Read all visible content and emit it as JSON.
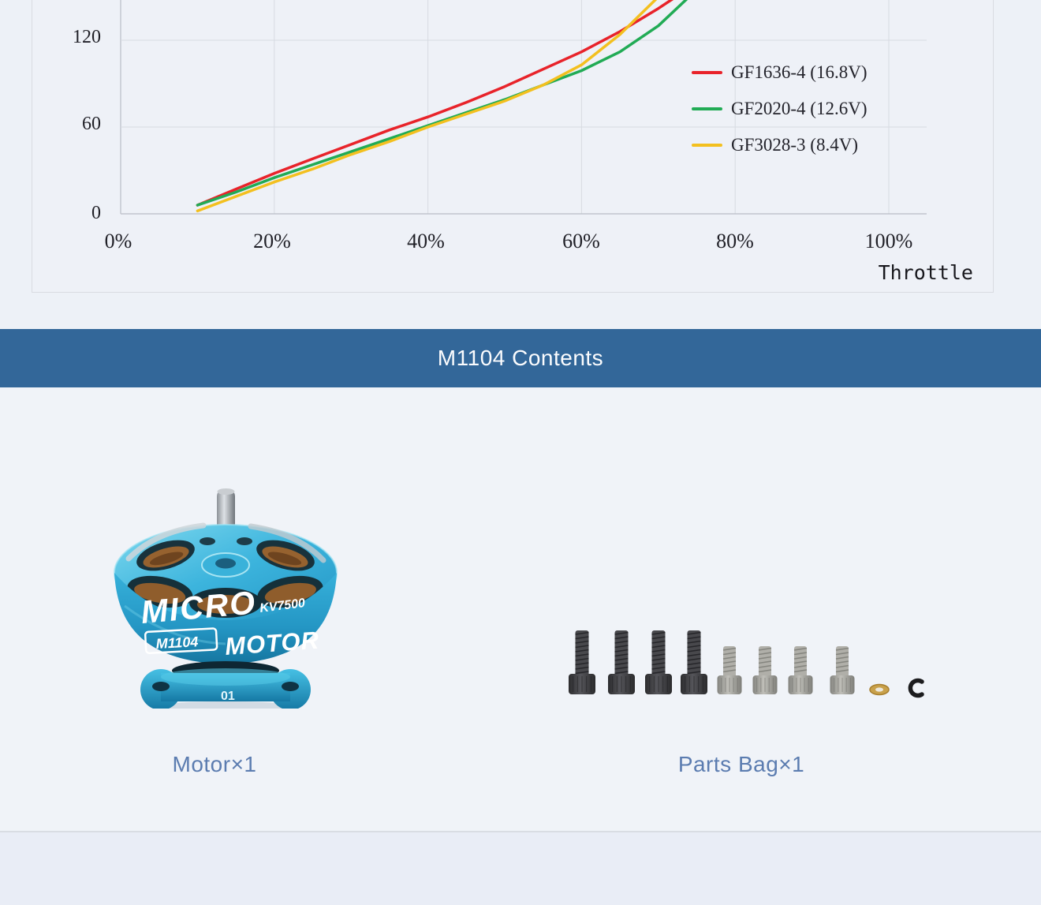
{
  "page": {
    "section_title": "M1104 Contents",
    "captions": {
      "motor": "Motor×1",
      "parts_bag": "Parts Bag×1"
    },
    "colors": {
      "banner_blue": "#336799",
      "caption_text": "#5b7cb0",
      "page_background": "#edf1f7",
      "series_red": "#e8232a",
      "series_green": "#21ab55",
      "series_yellow": "#f3c01f"
    }
  },
  "motor_graphic": {
    "brand_line1": "MICRO",
    "brand_line2": "MOTOR",
    "kv_text": "KV7500",
    "model_text": "M1104",
    "base_text": "01"
  },
  "chart_data": {
    "type": "line",
    "title": "",
    "xlabel": "Throttle",
    "ylabel": "",
    "grid": true,
    "legend_position": "right-middle",
    "x_tick_labels": [
      "0%",
      "20%",
      "40%",
      "60%",
      "80%",
      "100%"
    ],
    "x_tick_values": [
      0,
      20,
      40,
      60,
      80,
      100
    ],
    "y_tick_labels_top_to_bottom": [
      "120",
      "60",
      "0"
    ],
    "y_tick_values": [
      0,
      60,
      120
    ],
    "visible_y_range": [
      0,
      148
    ],
    "series": [
      {
        "name": "GF1636-4 (16.8V)",
        "color": "#e8232a",
        "x": [
          10,
          15,
          20,
          25,
          30,
          35,
          40,
          45,
          50,
          55,
          60,
          65,
          70,
          72
        ],
        "y": [
          6,
          17,
          28,
          38,
          48,
          58,
          67,
          77,
          88,
          100,
          112,
          126,
          142,
          149
        ]
      },
      {
        "name": "GF2020-4 (12.6V)",
        "color": "#21ab55",
        "x": [
          10,
          15,
          20,
          25,
          30,
          35,
          40,
          45,
          50,
          55,
          60,
          65,
          70,
          74
        ],
        "y": [
          6,
          15,
          25,
          34,
          43,
          52,
          61,
          70,
          79,
          89,
          99,
          112,
          130,
          150
        ]
      },
      {
        "name": "GF3028-3 (8.4V)",
        "color": "#f3c01f",
        "x": [
          10,
          15,
          20,
          25,
          30,
          35,
          40,
          45,
          50,
          55,
          60,
          65,
          70
        ],
        "y": [
          2,
          12,
          22,
          31,
          41,
          50,
          60,
          69,
          78,
          89,
          103,
          124,
          150
        ]
      }
    ]
  }
}
